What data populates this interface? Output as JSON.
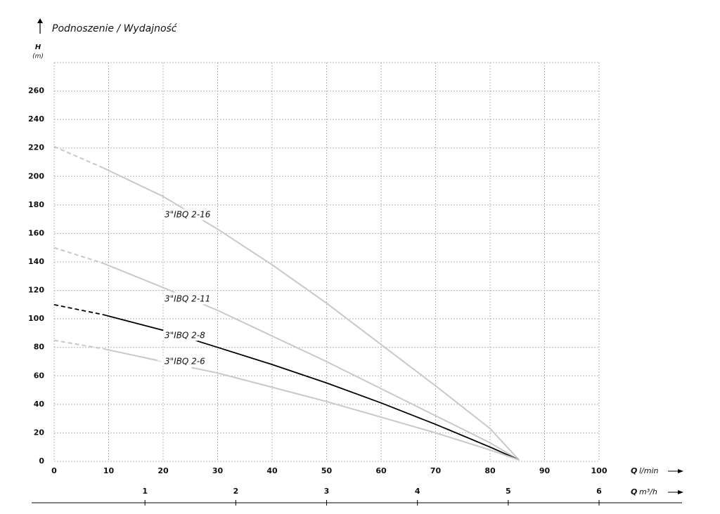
{
  "chart_data": {
    "type": "line",
    "title": "Podnoszenie / Wydajność",
    "y_label": {
      "symbol": "H",
      "unit": "(m)"
    },
    "x_label": {
      "symbol": "Q",
      "unit": "l/min"
    },
    "x2_label": {
      "symbol": "Q",
      "unit": "m³/h"
    },
    "xlim": [
      0,
      100
    ],
    "xticks": [
      0,
      10,
      20,
      30,
      40,
      50,
      60,
      70,
      80,
      90,
      100
    ],
    "x2lim": [
      0,
      6
    ],
    "x2ticks": [
      1,
      2,
      3,
      4,
      5,
      6
    ],
    "ylim": [
      0,
      280
    ],
    "yticks": [
      0,
      20,
      40,
      60,
      80,
      100,
      120,
      140,
      160,
      180,
      200,
      220,
      240,
      260
    ],
    "grid": true,
    "leading_segment_style": "dashed",
    "series": [
      {
        "name": "3\"IBQ 2-16",
        "color": "#c8c8c8",
        "label_color": "#bdbdbd",
        "x": [
          0,
          9,
          20,
          30,
          40,
          50,
          60,
          70,
          80,
          85.3
        ],
        "values": [
          221,
          206,
          186,
          163,
          138,
          111,
          82,
          53,
          23,
          1
        ]
      },
      {
        "name": "3\"IBQ 2-11",
        "color": "#c8c8c8",
        "label_color": "#bdbdbd",
        "x": [
          0,
          9,
          20,
          30,
          40,
          50,
          60,
          70,
          80,
          85.3
        ],
        "values": [
          150,
          139,
          122,
          106,
          88,
          70,
          51,
          32,
          13,
          1
        ]
      },
      {
        "name": "3\"IBQ 2-8",
        "color": "#000000",
        "label_color": "#000000",
        "x": [
          0,
          9,
          20,
          30,
          40,
          50,
          60,
          70,
          80,
          85.3
        ],
        "values": [
          110,
          103,
          92,
          80,
          68,
          55,
          41,
          26,
          10,
          1
        ]
      },
      {
        "name": "3\"IBQ 2-6",
        "color": "#c8c8c8",
        "label_color": "#bdbdbd",
        "x": [
          0,
          9,
          20,
          30,
          40,
          50,
          60,
          70,
          80,
          85.3
        ],
        "values": [
          85,
          79,
          70,
          62,
          52,
          42,
          31,
          20,
          8,
          1
        ]
      }
    ]
  }
}
